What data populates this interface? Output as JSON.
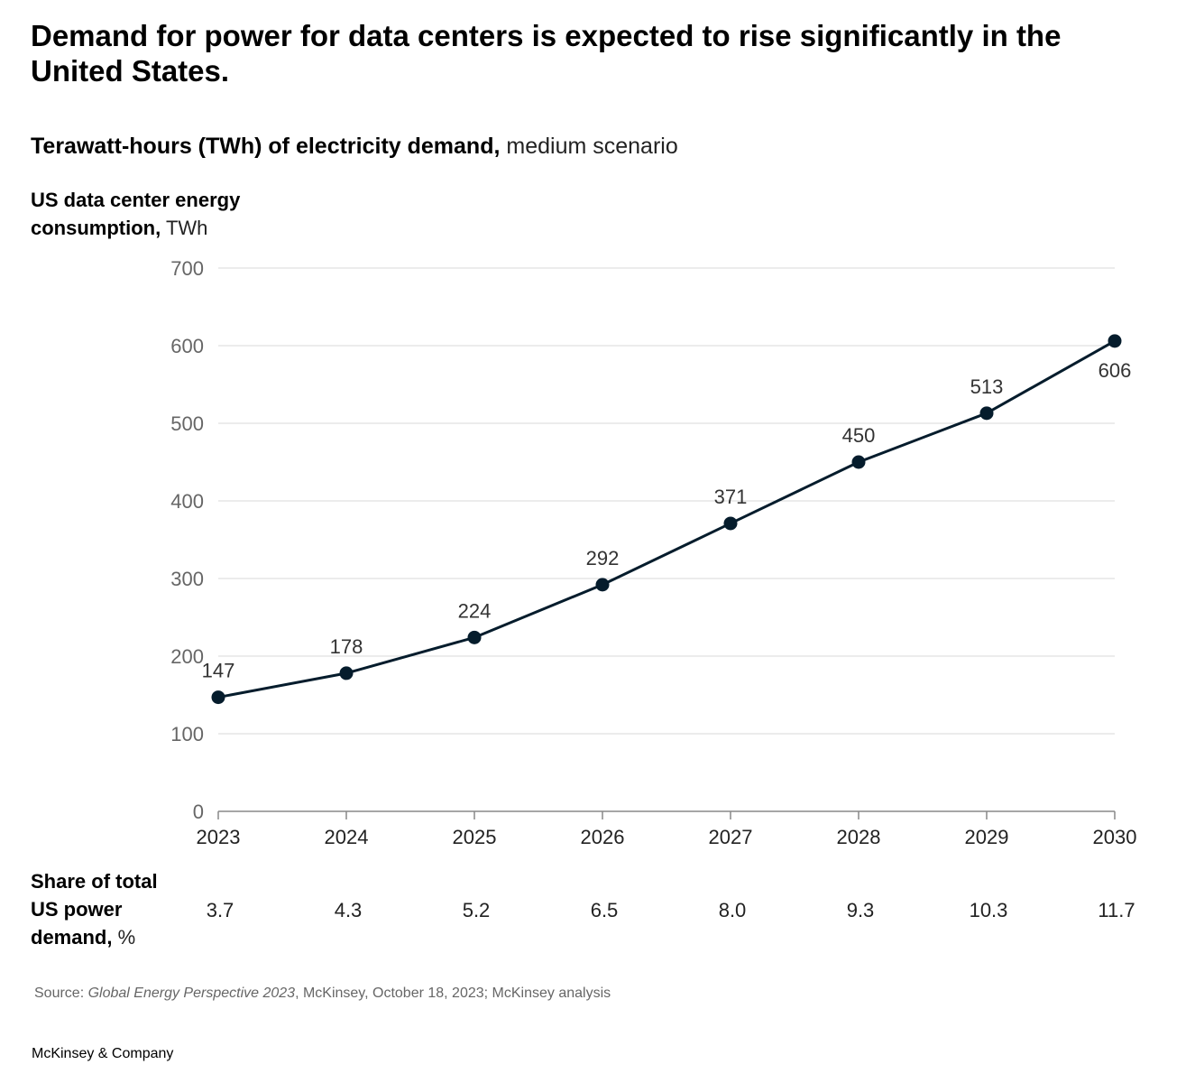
{
  "title": "Demand for power for data centers is expected to rise significantly in the United States.",
  "subtitle": {
    "bold": "Terawatt-hours (TWh) of electricity demand,",
    "light": "medium scenario"
  },
  "ylabel": {
    "bold_line1": "US data center energy",
    "bold_line2": "consumption,",
    "unit": "TWh"
  },
  "share": {
    "label_line1": "Share of total",
    "label_line2": "US power",
    "label_line3": "demand,",
    "unit": "%",
    "values": [
      "3.7",
      "4.3",
      "5.2",
      "6.5",
      "8.0",
      "9.3",
      "10.3",
      "11.7"
    ]
  },
  "source": {
    "prefix": "Source:",
    "italic": "Global Energy Perspective 2023",
    "rest": ", McKinsey, October 18, 2023; McKinsey analysis"
  },
  "brand": "McKinsey & Company",
  "colors": {
    "line": "#051c2c",
    "grid": "#d9d9d9",
    "axis_text": "#666666",
    "value_text": "#333333"
  },
  "chart_data": {
    "type": "line",
    "title": "Demand for power for data centers is expected to rise significantly in the United States.",
    "xlabel": "",
    "ylabel": "US data center energy consumption, TWh",
    "x": [
      "2023",
      "2024",
      "2025",
      "2026",
      "2027",
      "2028",
      "2029",
      "2030"
    ],
    "series": [
      {
        "values": [
          147,
          178,
          224,
          292,
          371,
          450,
          513,
          606
        ]
      }
    ],
    "data_labels": [
      "147",
      "178",
      "224",
      "292",
      "371",
      "450",
      "513",
      "606"
    ],
    "yticks": [
      0,
      100,
      200,
      300,
      400,
      500,
      600,
      700
    ],
    "ylim": [
      0,
      700
    ],
    "grid": true,
    "markers": true
  }
}
